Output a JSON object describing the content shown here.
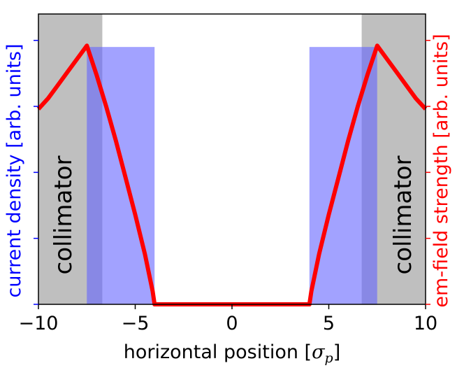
{
  "chart_data": {
    "type": "line",
    "xlabel": "horizontal position [σ_p]",
    "xlabel_main": "horizontal position [",
    "xlabel_symbol": "σ",
    "xlabel_sub": "p",
    "xlabel_end": "]",
    "ylabel_left": "current density [arb. units]",
    "ylabel_right": "em-field strength [arb. units]",
    "xlim": [
      -10,
      10
    ],
    "ylim": [
      0,
      1.1
    ],
    "x_ticks": [
      -10,
      -5,
      0,
      5,
      10
    ],
    "x_tick_labels": [
      "−10",
      "−5",
      "0",
      "5",
      "10"
    ],
    "y_ticks": [
      0,
      0.25,
      0.5,
      0.75,
      1.0
    ],
    "grid": false,
    "regions": [
      {
        "label": "collimator",
        "x0": -10,
        "x1": -6.7,
        "color": "#bfbfbf"
      },
      {
        "label": "collimator",
        "x0": 6.7,
        "x1": 10,
        "color": "#bfbfbf"
      }
    ],
    "current_density": {
      "color": "#6464ff",
      "bands": [
        {
          "x0": -7.5,
          "x1": -4.0,
          "y": 0.975
        },
        {
          "x0": 4.0,
          "x1": 7.5,
          "y": 0.975
        }
      ]
    },
    "series": [
      {
        "color": "#ff0000",
        "x": [
          -10,
          -9.5,
          -9,
          -8.5,
          -8,
          -7.5,
          -7.0,
          -6.5,
          -6.0,
          -5.5,
          -5.0,
          -4.5,
          -4.1,
          -4.0,
          4.0,
          4.1,
          4.5,
          5.0,
          5.5,
          6.0,
          6.5,
          7.0,
          7.5,
          8,
          8.5,
          9,
          9.5,
          10
        ],
        "y": [
          0.74,
          0.78,
          0.83,
          0.88,
          0.93,
          0.98,
          0.87,
          0.75,
          0.62,
          0.48,
          0.34,
          0.19,
          0.05,
          0.0,
          0.0,
          0.05,
          0.19,
          0.34,
          0.48,
          0.62,
          0.75,
          0.87,
          0.98,
          0.93,
          0.88,
          0.83,
          0.78,
          0.74
        ]
      }
    ]
  }
}
